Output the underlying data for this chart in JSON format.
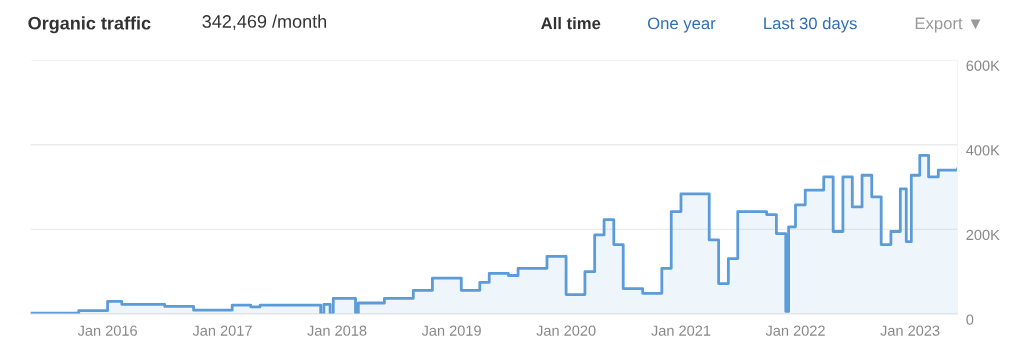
{
  "chart_data": {
    "type": "area",
    "title": "Organic traffic",
    "subtitle": "342,469 /month",
    "annotations": [
      "All time",
      "One year",
      "Last 30 days",
      "Export ▼"
    ],
    "x": [
      "2015-05-01",
      "2015-10-01",
      "2016-01-01",
      "2016-02-15",
      "2016-07-01",
      "2016-10-01",
      "2017-02-01",
      "2017-04-01",
      "2017-05-01",
      "2017-11-10",
      "2017-11-20",
      "2017-12-10",
      "2017-12-20",
      "2018-03-01",
      "2018-03-10",
      "2018-06-01",
      "2018-09-01",
      "2018-11-01",
      "2019-02-01",
      "2019-04-01",
      "2019-05-01",
      "2019-07-01",
      "2019-08-01",
      "2019-11-01",
      "2020-01-01",
      "2020-03-01",
      "2020-04-01",
      "2020-05-01",
      "2020-06-01",
      "2020-07-01",
      "2020-09-01",
      "2020-11-01",
      "2020-12-01",
      "2021-01-01",
      "2021-04-01",
      "2021-05-01",
      "2021-06-01",
      "2021-07-01",
      "2021-10-01",
      "2021-11-01",
      "2021-12-01",
      "2021-12-10",
      "2022-01-01",
      "2022-02-01",
      "2022-04-01",
      "2022-05-01",
      "2022-06-01",
      "2022-07-01",
      "2022-08-01",
      "2022-09-01",
      "2022-10-01",
      "2022-11-01",
      "2022-12-01",
      "2022-12-20",
      "2023-01-05",
      "2023-02-01",
      "2023-03-01",
      "2023-04-01",
      "2023-06-01"
    ],
    "series": [
      {
        "color": "#5b9bd8",
        "values": [
          2000,
          8000,
          30000,
          23000,
          18000,
          9000,
          21000,
          17000,
          21000,
          0,
          23000,
          0,
          37000,
          0,
          26000,
          37000,
          56000,
          85000,
          56000,
          75000,
          96000,
          91000,
          108000,
          136000,
          46000,
          100000,
          187000,
          223000,
          164000,
          60000,
          49000,
          108000,
          242000,
          284000,
          175000,
          72000,
          131000,
          242000,
          235000,
          190000,
          6000,
          206000,
          258000,
          293000,
          324000,
          195000,
          324000,
          253000,
          328000,
          277000,
          164000,
          195000,
          296000,
          171000,
          328000,
          375000,
          324000,
          340000,
          343000
        ]
      }
    ],
    "xlim": [
      "2015-05-01",
      "2023-06-01"
    ],
    "xticks": [
      {
        "value": "2016-01-01",
        "label": "Jan 2016"
      },
      {
        "value": "2017-01-01",
        "label": "Jan 2017"
      },
      {
        "value": "2018-01-01",
        "label": "Jan 2018"
      },
      {
        "value": "2019-01-01",
        "label": "Jan 2019"
      },
      {
        "value": "2020-01-01",
        "label": "Jan 2020"
      },
      {
        "value": "2021-01-01",
        "label": "Jan 2021"
      },
      {
        "value": "2022-01-01",
        "label": "Jan 2022"
      },
      {
        "value": "2023-01-01",
        "label": "Jan 2023"
      }
    ],
    "ylim": [
      0,
      600000
    ],
    "yticks": [
      {
        "value": 0,
        "label": "0"
      },
      {
        "value": 200000,
        "label": "200K"
      },
      {
        "value": 400000,
        "label": "400K"
      },
      {
        "value": 600000,
        "label": "600K"
      }
    ],
    "grid": "y",
    "line_style": "solid"
  }
}
